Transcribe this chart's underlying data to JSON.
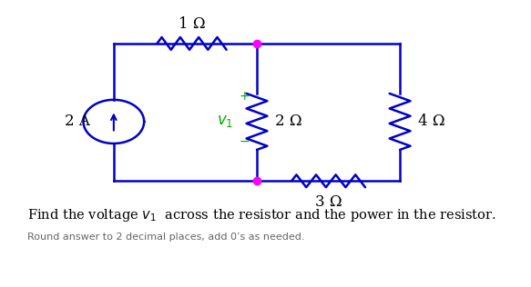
{
  "bg_color": "#ffffff",
  "circuit_color": "#0000cc",
  "node_color": "#ff00ff",
  "v1_color": "#00aa00",
  "plus_minus_color": "#00aa00",
  "text_color": "#000000",
  "title_color": "#000000",
  "subtitle_color": "#666666",
  "title_text": "Find the voltage $v_1$  across the resistor and the power in the resistor.",
  "subtitle_text": "Round answer to 2 decimal places, add 0’s as needed.",
  "label_1ohm": "1 Ω",
  "label_2ohm": "2 Ω",
  "label_3ohm": "3 Ω",
  "label_4ohm": "4 Ω",
  "label_2A": "2 A",
  "label_v1": "$v_1$",
  "label_plus": "+",
  "label_minus": "−",
  "fig_width": 5.83,
  "fig_height": 3.16,
  "dpi": 100,
  "xlim": [
    0,
    12
  ],
  "ylim": [
    -1.5,
    7.5
  ]
}
